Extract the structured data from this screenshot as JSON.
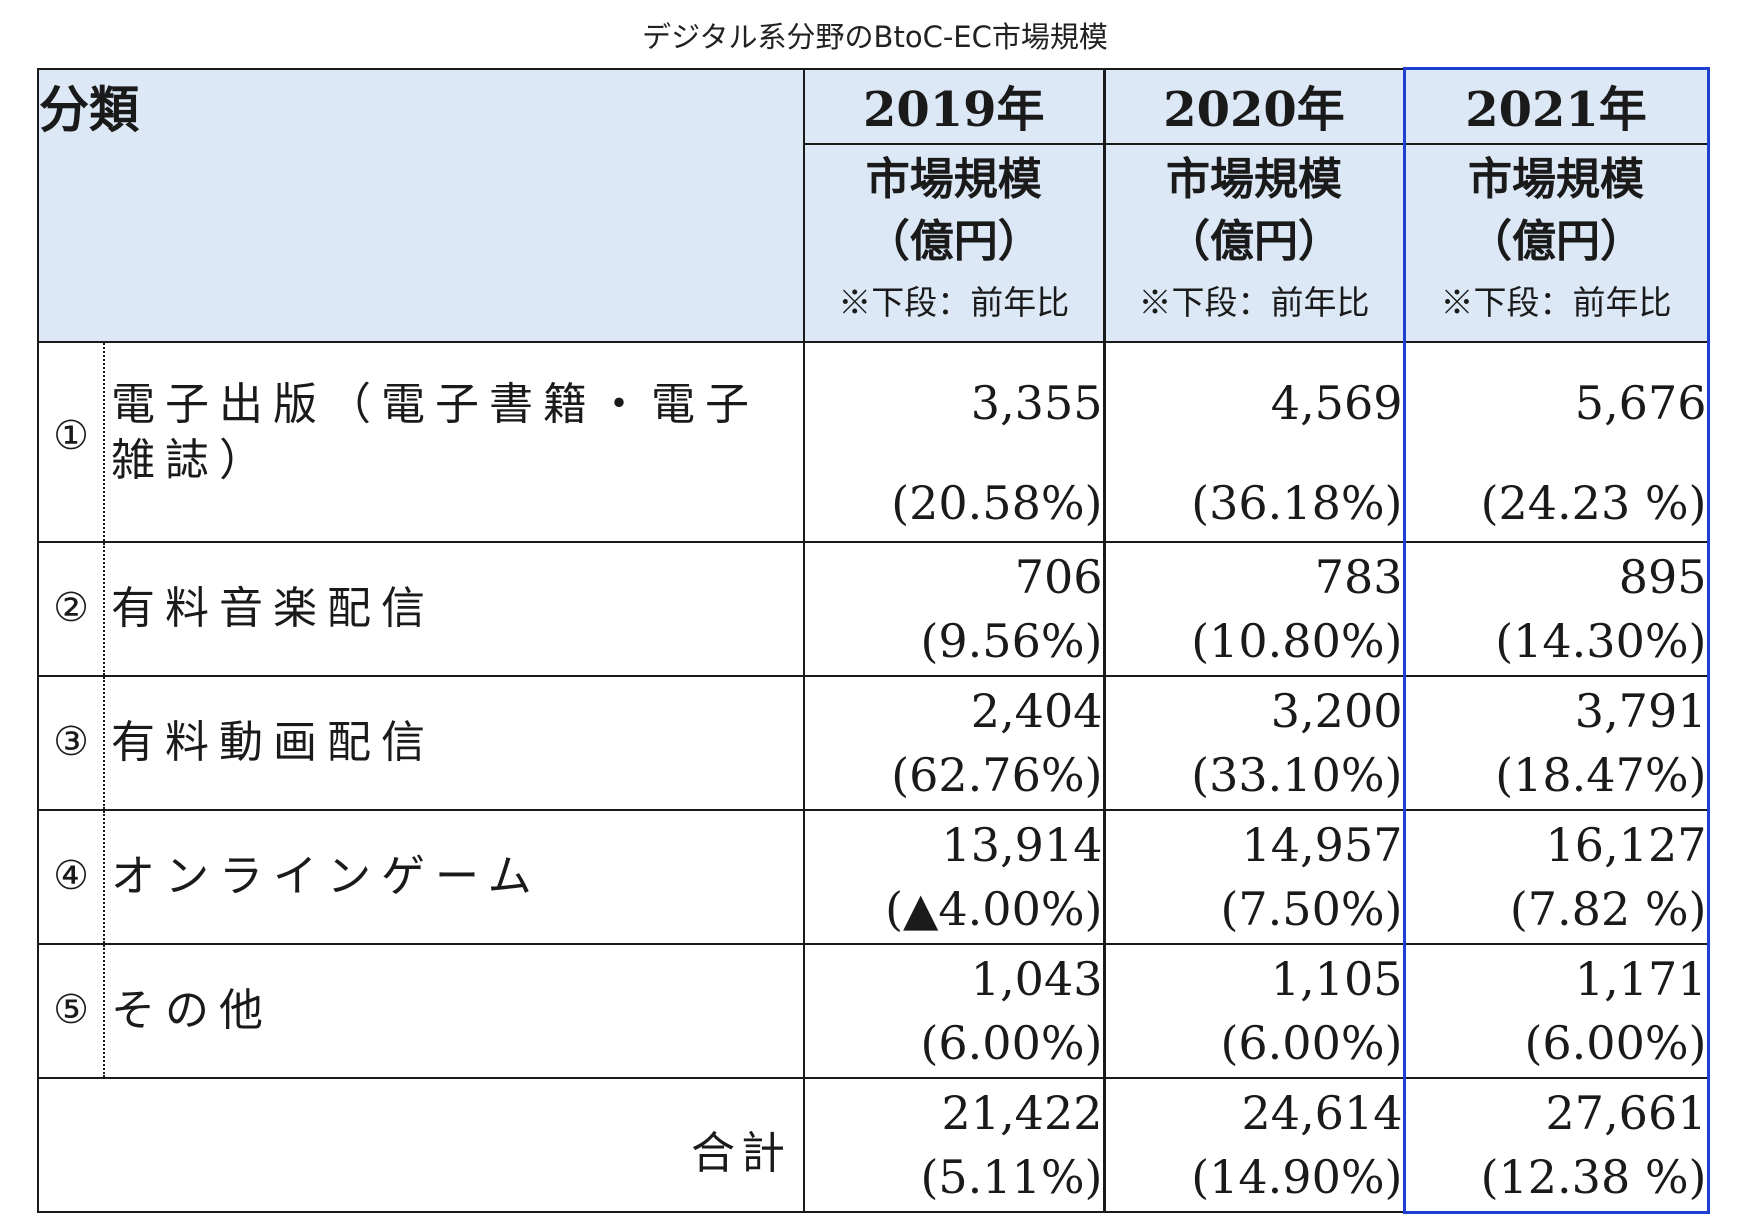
{
  "caption": "デジタル系分野のBtoC-EC市場規模",
  "header": {
    "category": "分類",
    "years": [
      "2019年",
      "2020年",
      "2021年"
    ],
    "unit_line1": "市場規模",
    "unit_line2": "（億円）",
    "unit_note": "※下段：前年比"
  },
  "rows": [
    {
      "no": "①",
      "name": "電子出版（電子書籍・電子雑誌）",
      "v2019": "3,355",
      "y2019": "(20.58%)",
      "v2020": "4,569",
      "y2020": "(36.18%)",
      "v2021": "5,676",
      "y2021": "(24.23 %)"
    },
    {
      "no": "②",
      "name": "有料音楽配信",
      "v2019": "706",
      "y2019": "(9.56%)",
      "v2020": "783",
      "y2020": "(10.80%)",
      "v2021": "895",
      "y2021": "(14.30%)"
    },
    {
      "no": "③",
      "name": "有料動画配信",
      "v2019": "2,404",
      "y2019": "(62.76%)",
      "v2020": "3,200",
      "y2020": "(33.10%)",
      "v2021": "3,791",
      "y2021": "(18.47%)"
    },
    {
      "no": "④",
      "name": "オンラインゲーム",
      "v2019": "13,914",
      "y2019": "(▲4.00%)",
      "v2020": "14,957",
      "y2020": "(7.50%)",
      "v2021": "16,127",
      "y2021": "(7.82 %)"
    },
    {
      "no": "⑤",
      "name": "その他",
      "v2019": "1,043",
      "y2019": "(6.00%)",
      "v2020": "1,105",
      "y2020": "(6.00%)",
      "v2021": "1,171",
      "y2021": "(6.00%)"
    }
  ],
  "total": {
    "label": "合計",
    "v2019": "21,422",
    "y2019": "(5.11%)",
    "v2020": "24,614",
    "y2020": "(14.90%)",
    "v2021": "27,661",
    "y2021": "(12.38 %)"
  },
  "colors": {
    "header_bg": "#dce8f5",
    "highlight_border": "#1f3fd1",
    "grid": "#1a1a1a"
  }
}
